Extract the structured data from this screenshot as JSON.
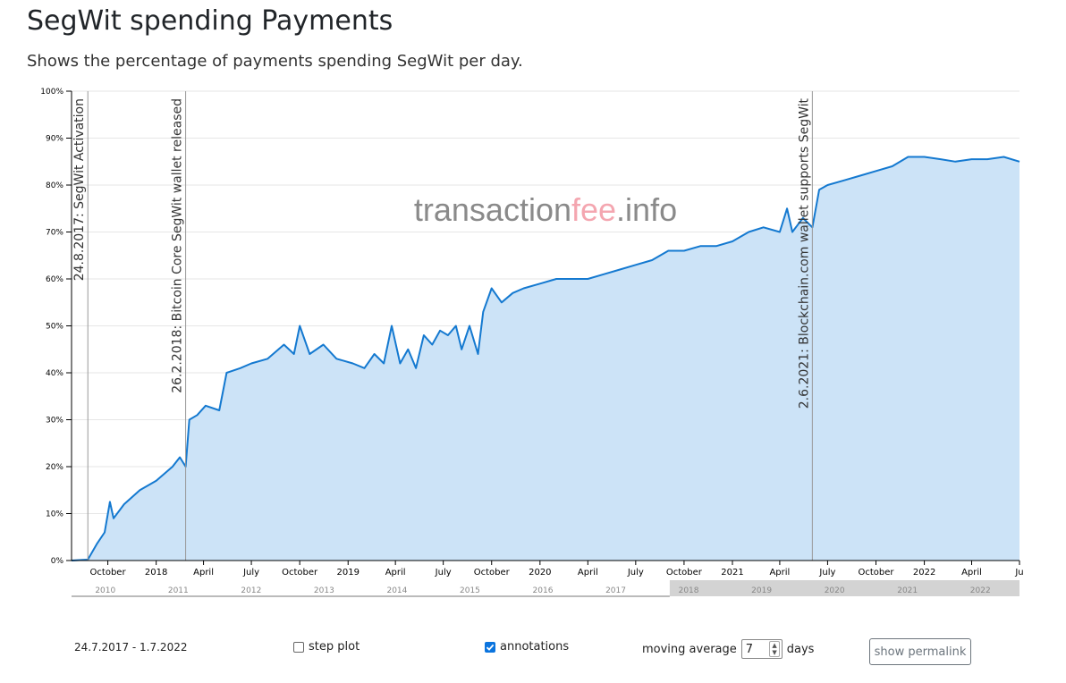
{
  "header": {
    "title": "SegWit spending Payments",
    "subtitle": "Shows the percentage of payments spending SegWit per day."
  },
  "watermark": {
    "part1": "transaction",
    "part2": "fee",
    "part3": ".info"
  },
  "colors": {
    "line": "#1479d0",
    "area": "#cce3f7",
    "navigator_selection": "#d3d3d3",
    "watermark_grey": "#8a8a8a",
    "watermark_red": "#f4a6b0"
  },
  "chart_data": {
    "type": "area",
    "ylim": [
      0,
      100
    ],
    "y_ticks": [
      "0%",
      "10%",
      "20%",
      "30%",
      "40%",
      "50%",
      "60%",
      "70%",
      "80%",
      "90%",
      "100%"
    ],
    "x_range": [
      "2017-07-24",
      "2022-07-01"
    ],
    "x_ticks": [
      {
        "label": "October",
        "date": "2017-10-01"
      },
      {
        "label": "2018",
        "date": "2018-01-01"
      },
      {
        "label": "April",
        "date": "2018-04-01"
      },
      {
        "label": "July",
        "date": "2018-07-01"
      },
      {
        "label": "October",
        "date": "2018-10-01"
      },
      {
        "label": "2019",
        "date": "2019-01-01"
      },
      {
        "label": "April",
        "date": "2019-04-01"
      },
      {
        "label": "July",
        "date": "2019-07-01"
      },
      {
        "label": "October",
        "date": "2019-10-01"
      },
      {
        "label": "2020",
        "date": "2020-01-01"
      },
      {
        "label": "April",
        "date": "2020-04-01"
      },
      {
        "label": "July",
        "date": "2020-07-01"
      },
      {
        "label": "October",
        "date": "2020-10-01"
      },
      {
        "label": "2021",
        "date": "2021-01-01"
      },
      {
        "label": "April",
        "date": "2021-04-01"
      },
      {
        "label": "July",
        "date": "2021-07-01"
      },
      {
        "label": "October",
        "date": "2021-10-01"
      },
      {
        "label": "2022",
        "date": "2022-01-01"
      },
      {
        "label": "April",
        "date": "2022-04-01"
      },
      {
        "label": "Ju",
        "date": "2022-07-01"
      }
    ],
    "annotations": [
      {
        "date": "2017-08-24",
        "label": "24.8.2017: SegWit Activation"
      },
      {
        "date": "2018-02-26",
        "label": "26.2.2018: Bitcoin Core SegWit wallet released"
      },
      {
        "date": "2021-06-02",
        "label": "2.6.2021: Blockchain.com wallet supports SegWit"
      }
    ],
    "series": [
      {
        "values": [
          [
            "2017-07-24",
            0
          ],
          [
            "2017-08-24",
            0.2
          ],
          [
            "2017-09-10",
            3.5
          ],
          [
            "2017-09-25",
            6
          ],
          [
            "2017-10-05",
            12.5
          ],
          [
            "2017-10-12",
            9
          ],
          [
            "2017-11-01",
            12
          ],
          [
            "2017-12-01",
            15
          ],
          [
            "2018-01-01",
            17
          ],
          [
            "2018-02-01",
            20
          ],
          [
            "2018-02-15",
            22
          ],
          [
            "2018-02-26",
            20
          ],
          [
            "2018-03-05",
            30
          ],
          [
            "2018-03-20",
            31
          ],
          [
            "2018-04-05",
            33
          ],
          [
            "2018-05-01",
            32
          ],
          [
            "2018-05-15",
            40
          ],
          [
            "2018-06-10",
            41
          ],
          [
            "2018-07-01",
            42
          ],
          [
            "2018-08-01",
            43
          ],
          [
            "2018-09-01",
            46
          ],
          [
            "2018-09-20",
            44
          ],
          [
            "2018-10-01",
            50
          ],
          [
            "2018-10-20",
            44
          ],
          [
            "2018-11-15",
            46
          ],
          [
            "2018-12-10",
            43
          ],
          [
            "2019-01-10",
            42
          ],
          [
            "2019-02-01",
            41
          ],
          [
            "2019-02-20",
            44
          ],
          [
            "2019-03-10",
            42
          ],
          [
            "2019-03-25",
            50
          ],
          [
            "2019-04-10",
            42
          ],
          [
            "2019-04-25",
            45
          ],
          [
            "2019-05-10",
            41
          ],
          [
            "2019-05-25",
            48
          ],
          [
            "2019-06-10",
            46
          ],
          [
            "2019-06-25",
            49
          ],
          [
            "2019-07-10",
            48
          ],
          [
            "2019-07-25",
            50
          ],
          [
            "2019-08-05",
            45
          ],
          [
            "2019-08-20",
            50
          ],
          [
            "2019-09-05",
            44
          ],
          [
            "2019-09-15",
            53
          ],
          [
            "2019-10-01",
            58
          ],
          [
            "2019-10-20",
            55
          ],
          [
            "2019-11-10",
            57
          ],
          [
            "2019-12-01",
            58
          ],
          [
            "2020-01-01",
            59
          ],
          [
            "2020-02-01",
            60
          ],
          [
            "2020-03-01",
            60
          ],
          [
            "2020-04-01",
            60
          ],
          [
            "2020-05-01",
            61
          ],
          [
            "2020-06-01",
            62
          ],
          [
            "2020-07-01",
            63
          ],
          [
            "2020-08-01",
            64
          ],
          [
            "2020-09-01",
            66
          ],
          [
            "2020-10-01",
            66
          ],
          [
            "2020-11-01",
            67
          ],
          [
            "2020-12-01",
            67
          ],
          [
            "2021-01-01",
            68
          ],
          [
            "2021-02-01",
            70
          ],
          [
            "2021-03-01",
            71
          ],
          [
            "2021-04-01",
            70
          ],
          [
            "2021-04-15",
            75
          ],
          [
            "2021-04-25",
            70
          ],
          [
            "2021-05-15",
            73
          ],
          [
            "2021-06-02",
            71
          ],
          [
            "2021-06-15",
            79
          ],
          [
            "2021-07-01",
            80
          ],
          [
            "2021-08-01",
            81
          ],
          [
            "2021-09-01",
            82
          ],
          [
            "2021-10-01",
            83
          ],
          [
            "2021-11-01",
            84
          ],
          [
            "2021-12-01",
            86
          ],
          [
            "2022-01-01",
            86
          ],
          [
            "2022-02-01",
            85.5
          ],
          [
            "2022-03-01",
            85
          ],
          [
            "2022-04-01",
            85.5
          ],
          [
            "2022-05-01",
            85.5
          ],
          [
            "2022-06-01",
            86
          ],
          [
            "2022-07-01",
            85
          ]
        ]
      }
    ],
    "navigator": {
      "labels": [
        "2010",
        "2011",
        "2012",
        "2013",
        "2014",
        "2015",
        "2016",
        "2017",
        "2018",
        "2019",
        "2020",
        "2021",
        "2022"
      ],
      "selected_from": "2017-07-24",
      "selected_to": "2022-07-01"
    }
  },
  "controls": {
    "date_range": "24.7.2017 - 1.7.2022",
    "step_plot_label": "step plot",
    "step_plot_checked": false,
    "annotations_label": "annotations",
    "annotations_checked": true,
    "moving_average_label": "moving average",
    "moving_average_value": "7",
    "days_label": "days",
    "permalink_label": "show permalink"
  }
}
